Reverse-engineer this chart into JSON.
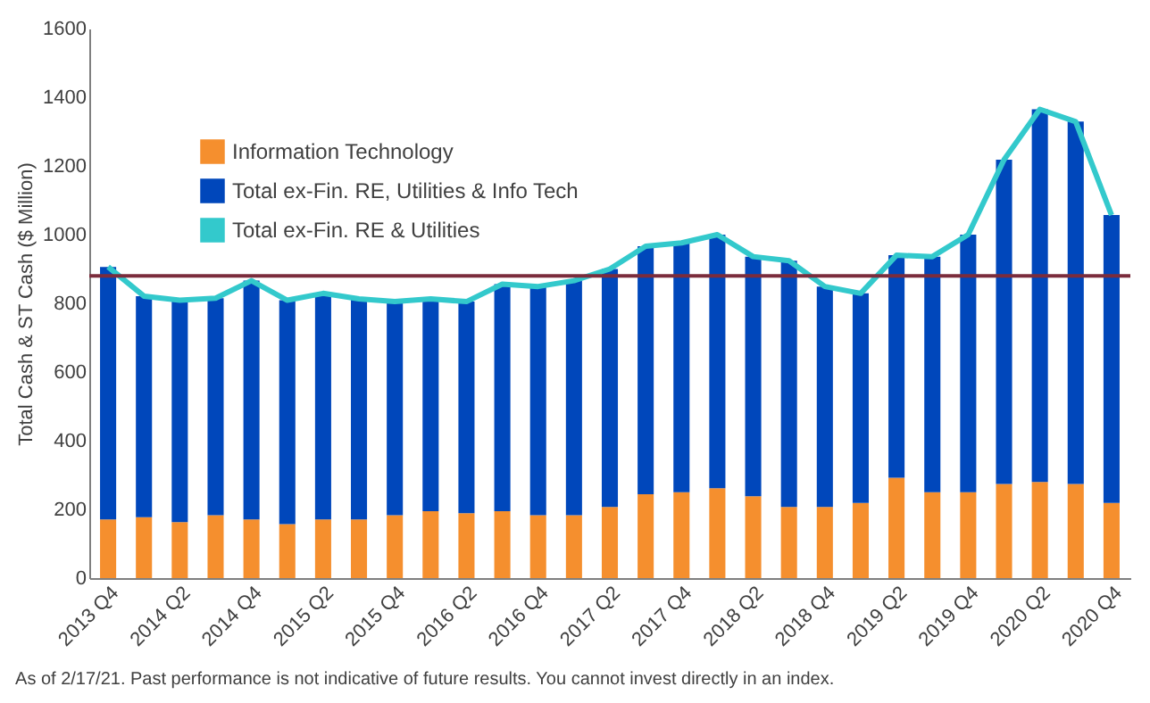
{
  "chart_data": {
    "type": "bar",
    "stacked": true,
    "ylabel": "Total Cash & ST Cash ($ Million)",
    "categories": [
      "2013 Q4",
      null,
      "2014 Q2",
      null,
      "2014 Q4",
      null,
      "2015 Q2",
      null,
      "2015 Q4",
      null,
      "2016 Q2",
      null,
      "2016 Q4",
      null,
      "2017 Q2",
      null,
      "2017 Q4",
      null,
      "2018 Q2",
      null,
      "2018 Q4",
      null,
      "2019 Q2",
      null,
      "2019 Q4",
      null,
      "2020 Q2",
      null,
      "2020 Q4"
    ],
    "series": [
      {
        "name": "Information Technology",
        "color": "#f58f2e",
        "values": [
          171,
          177,
          163,
          183,
          171,
          157,
          171,
          171,
          183,
          195,
          189,
          195,
          183,
          183,
          207,
          244,
          250,
          262,
          238,
          207,
          207,
          219,
          292,
          250,
          250,
          274,
          280,
          274,
          219
        ]
      },
      {
        "name": "Total ex-Fin. RE, Utilities & Info Tech",
        "color": "#0047bb",
        "values": [
          735,
          644,
          646,
          632,
          695,
          652,
          658,
          642,
          622,
          618,
          616,
          661,
          666,
          683,
          693,
          722,
          726,
          738,
          698,
          717,
          642,
          610,
          648,
          686,
          750,
          944,
          1085,
          1055,
          838
        ]
      },
      {
        "name": "Total ex-Fin. RE & Utilities",
        "type": "line",
        "color": "#33c9cc",
        "values": [
          906,
          821,
          809,
          815,
          866,
          809,
          829,
          813,
          805,
          813,
          805,
          856,
          849,
          866,
          900,
          966,
          976,
          1000,
          936,
          924,
          849,
          829,
          940,
          936,
          1000,
          1218,
          1365,
          1329,
          1057
        ]
      }
    ],
    "ylim": [
      0,
      1600
    ],
    "yticks": [
      0,
      200,
      400,
      600,
      800,
      1000,
      1200,
      1400,
      1600
    ],
    "ref_lines": [
      {
        "axis": "y",
        "value": 880,
        "color": "#7b2c3c"
      }
    ],
    "legend": "top left",
    "grid": false,
    "annotations": [
      "As of 2/17/21. Past performance is not indicative of future results. You cannot invest directly in an index."
    ]
  }
}
